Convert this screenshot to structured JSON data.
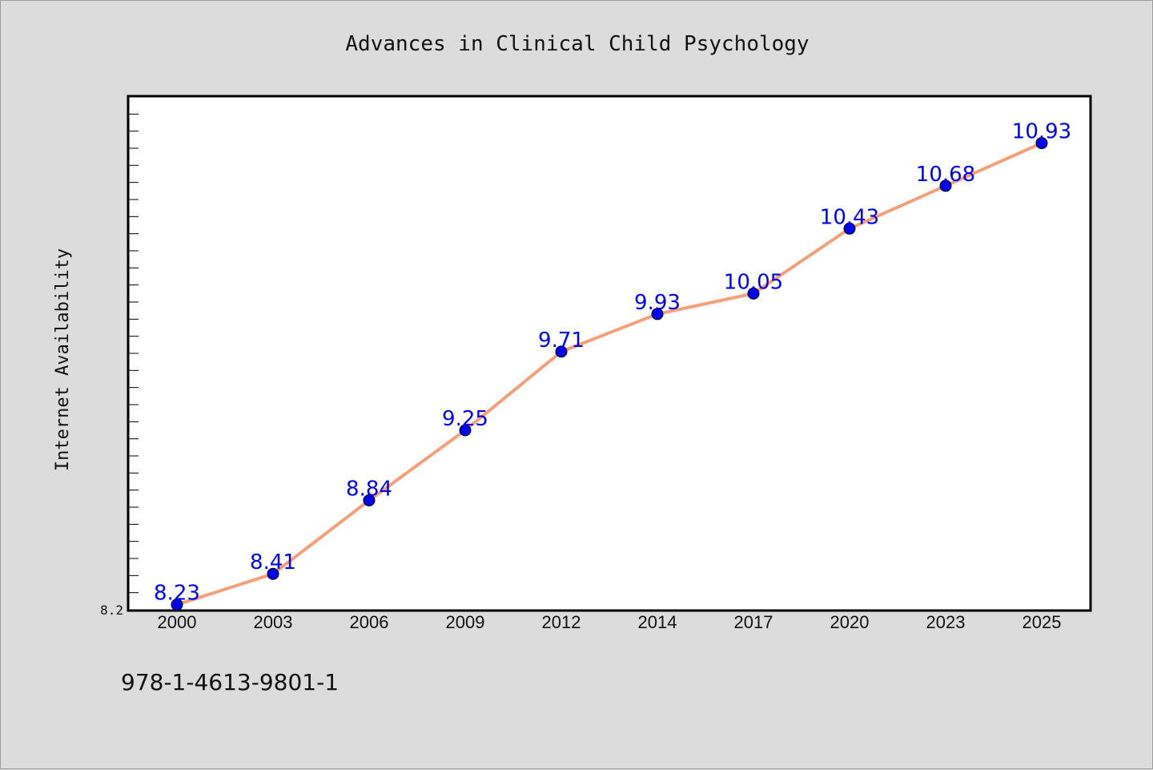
{
  "chart_data": {
    "type": "line",
    "title": "Advances in Clinical Child Psychology",
    "xlabel": "",
    "ylabel": "Internet Availability",
    "categories": [
      "2000",
      "2003",
      "2006",
      "2009",
      "2012",
      "2014",
      "2017",
      "2020",
      "2023",
      "2025"
    ],
    "values": [
      8.23,
      8.41,
      8.84,
      9.25,
      9.71,
      9.93,
      10.05,
      10.43,
      10.68,
      10.93
    ],
    "data_labels": [
      "8.23",
      "8.41",
      "8.84",
      "9.25",
      "9.71",
      "9.93",
      "10.05",
      "10.43",
      "10.68",
      "10.93"
    ],
    "y_tick_labels": [
      "8.2"
    ],
    "ylim": [
      8.2,
      11.2
    ],
    "grid": false,
    "line_color": "#f4a07a",
    "marker_color": "#0000ee",
    "label_color": "#0000ee"
  },
  "footer": {
    "isbn": "978-1-4613-9801-1"
  }
}
